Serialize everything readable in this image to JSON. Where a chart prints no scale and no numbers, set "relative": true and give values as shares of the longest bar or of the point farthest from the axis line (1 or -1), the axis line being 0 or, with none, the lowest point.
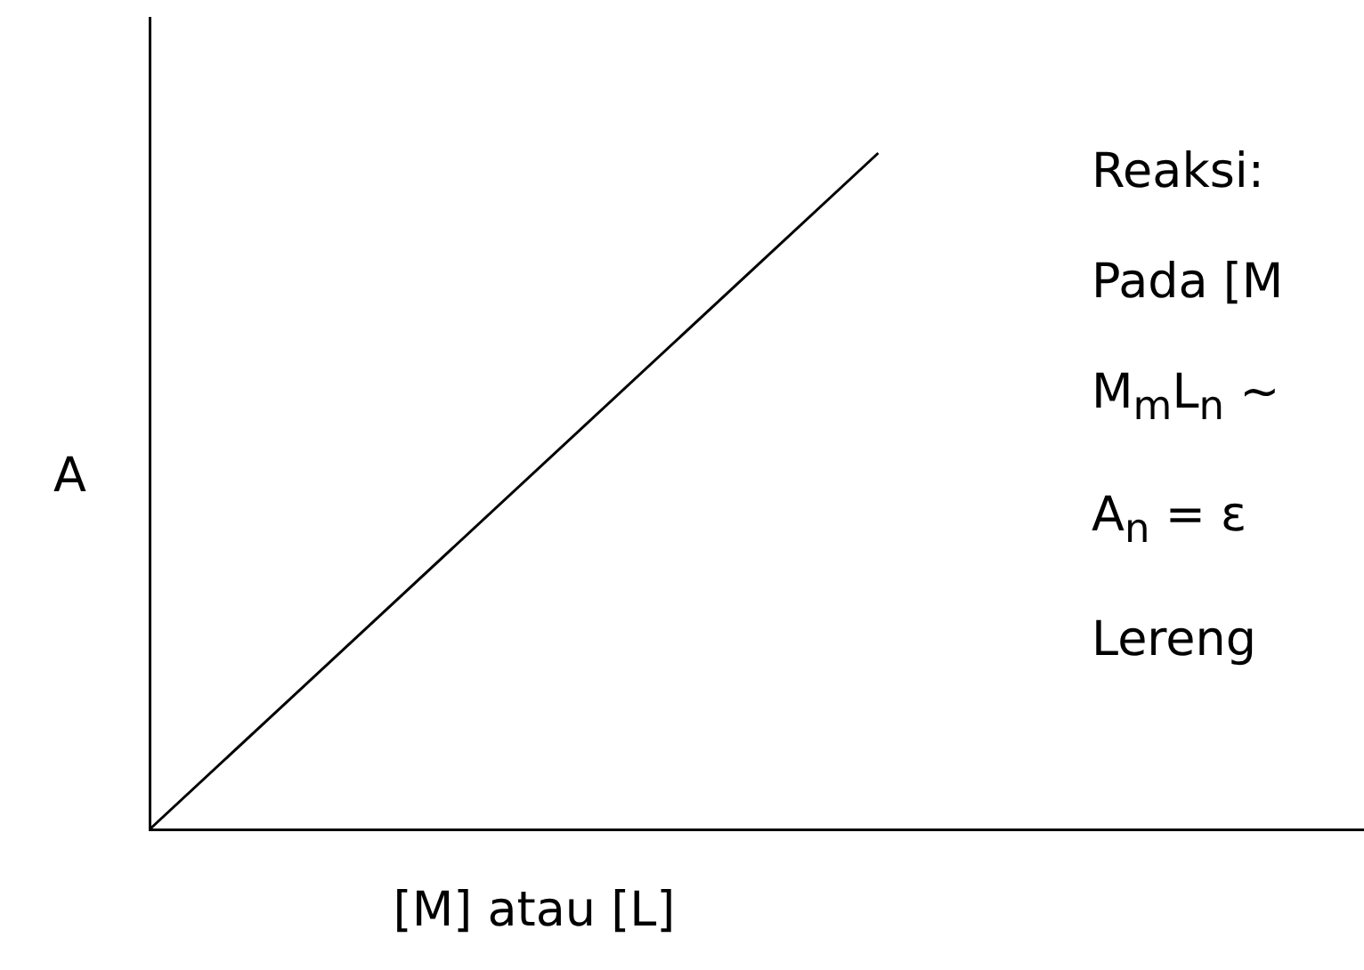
{
  "chart_data": {
    "type": "line",
    "relative": true,
    "xlabel": "[M] atau [L]",
    "ylabel": "A",
    "categories": [
      null,
      null,
      null,
      null,
      null,
      null,
      null,
      null,
      null,
      null,
      null
    ],
    "series": [
      {
        "color": "#000000",
        "values": [
          0,
          null,
          null,
          null,
          null,
          null,
          1,
          null,
          null,
          null,
          null
        ]
      }
    ],
    "marker": "none",
    "line_style": "solid",
    "grid": false,
    "legend": false,
    "tick_labels": false,
    "annotations": [
      "Reaksi:",
      "Pada [M",
      "M$_{m}$L$_{n}$ ~",
      "A$_{n}$ = ε",
      "Lereng"
    ]
  }
}
